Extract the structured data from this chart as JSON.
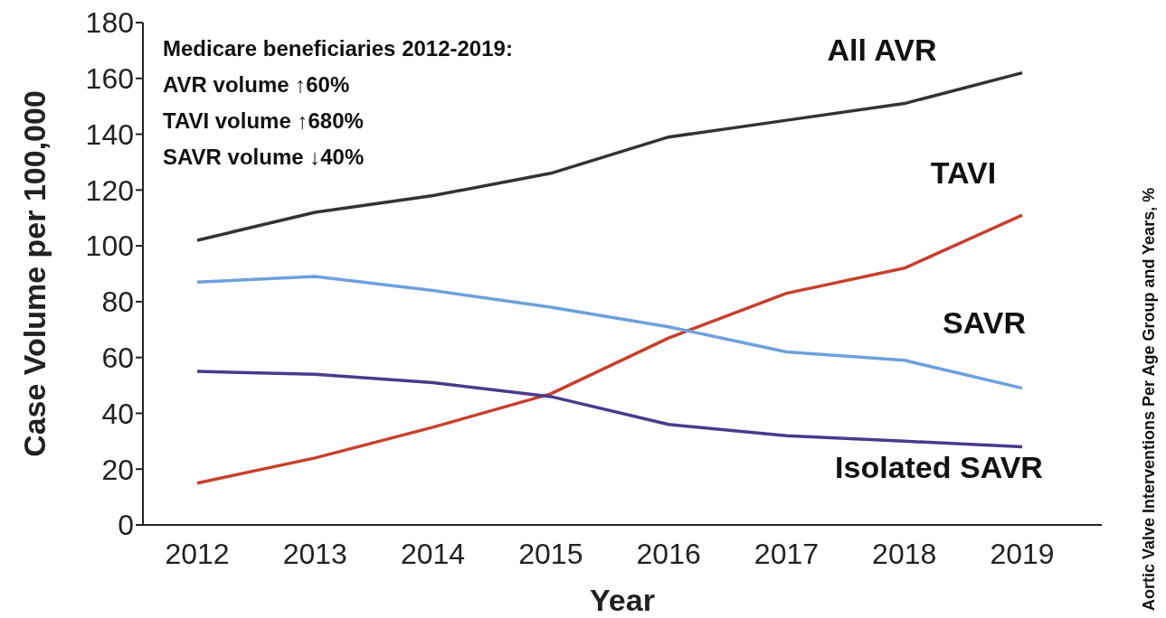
{
  "chart_data": {
    "type": "line",
    "xlabel": "Year",
    "ylabel": "Case Volume per 100,000",
    "y2label": "Aortic Valve Interventions Per Age Group and Years, %",
    "categories": [
      "2012",
      "2013",
      "2014",
      "2015",
      "2016",
      "2017",
      "2018",
      "2019"
    ],
    "series": [
      {
        "name": "All AVR",
        "color": "#333333",
        "values": [
          102,
          112,
          118,
          126,
          139,
          145,
          151,
          162
        ]
      },
      {
        "name": "TAVI",
        "color": "#c5402f",
        "values": [
          15,
          24,
          35,
          47,
          67,
          83,
          92,
          111
        ]
      },
      {
        "name": "SAVR",
        "color": "#6fa0dc",
        "values": [
          87,
          89,
          84,
          78,
          71,
          62,
          59,
          49
        ]
      },
      {
        "name": "Isolated SAVR",
        "color": "#4b3a8c",
        "values": [
          55,
          54,
          51,
          46,
          36,
          32,
          30,
          28
        ]
      }
    ],
    "ylim": [
      0,
      180
    ],
    "yticks": [
      0,
      20,
      40,
      60,
      80,
      100,
      120,
      140,
      160,
      180
    ],
    "grid": false,
    "legend": false,
    "marker": "none",
    "line_style": "solid",
    "annotations": [
      "Medicare beneficiaries 2012-2019:",
      "AVR volume ↑60%",
      "TAVI volume ↑680%",
      "SAVR volume ↓40%"
    ]
  }
}
